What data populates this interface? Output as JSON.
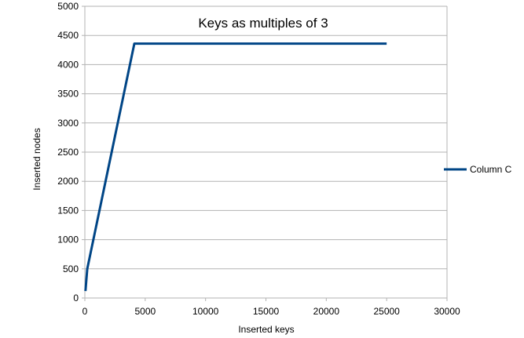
{
  "chart_data": {
    "type": "line",
    "title": "Keys as multiples of 3",
    "xlabel": "Inserted keys",
    "ylabel": "Inserted nodes",
    "xlim": [
      0,
      30000
    ],
    "ylim": [
      0,
      5000
    ],
    "xticks": [
      0,
      5000,
      10000,
      15000,
      20000,
      25000,
      30000
    ],
    "yticks": [
      0,
      500,
      1000,
      1500,
      2000,
      2500,
      3000,
      3500,
      4000,
      4500,
      5000
    ],
    "grid": true,
    "legend_position": "right",
    "series": [
      {
        "name": "Column C",
        "color": "#004586",
        "x": [
          50,
          200,
          4100,
          25000
        ],
        "y": [
          120,
          500,
          4360,
          4360
        ]
      }
    ]
  }
}
